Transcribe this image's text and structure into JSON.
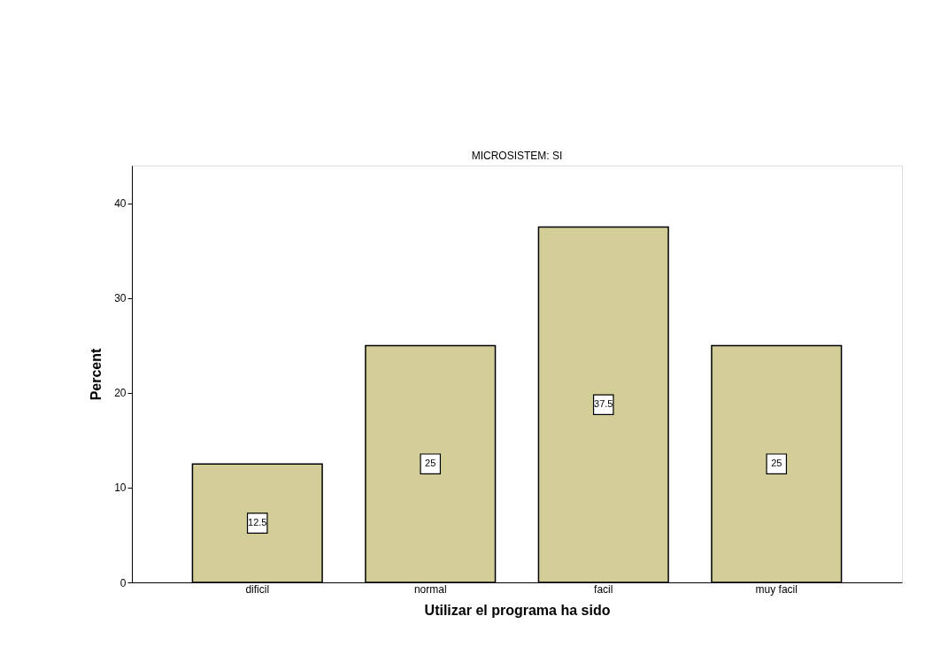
{
  "chart_data": {
    "type": "bar",
    "title": "MICROSISTEM: SI",
    "xlabel": "Utilizar el programa ha sido",
    "ylabel": "Percent",
    "categories": [
      "dificil",
      "normal",
      "facil",
      "muy facil"
    ],
    "values": [
      12.5,
      25,
      37.5,
      25
    ],
    "color": "#d3cd98",
    "ylim": [
      0,
      44
    ],
    "yticks": [
      0,
      10,
      20,
      30,
      40
    ],
    "grid": false,
    "data_labels": true
  }
}
